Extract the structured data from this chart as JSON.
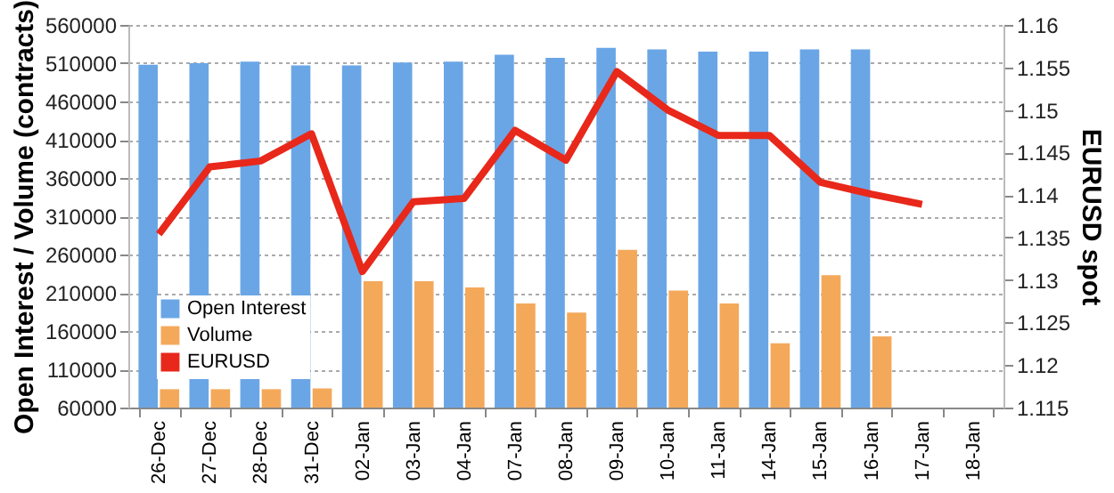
{
  "chart_data": {
    "type": "bar",
    "categories": [
      "26-Dec",
      "27-Dec",
      "28-Dec",
      "31-Dec",
      "02-Jan",
      "03-Jan",
      "04-Jan",
      "07-Jan",
      "08-Jan",
      "09-Jan",
      "10-Jan",
      "11-Jan",
      "14-Jan",
      "15-Jan",
      "16-Jan",
      "17-Jan",
      "18-Jan"
    ],
    "series": [
      {
        "name": "Open Interest",
        "color": "#6aa6e6",
        "values": [
          508000,
          510000,
          512000,
          507000,
          507000,
          511000,
          512000,
          521000,
          517000,
          530000,
          528000,
          525000,
          525000,
          528000,
          528000,
          null,
          null
        ]
      },
      {
        "name": "Volume",
        "color": "#f4a95a",
        "values": [
          84000,
          84000,
          84000,
          85000,
          225000,
          225000,
          217000,
          196000,
          184000,
          266000,
          213000,
          196000,
          144000,
          233000,
          153000,
          null,
          null
        ]
      },
      {
        "name": "EURUSD",
        "type": "line",
        "axis": "y2",
        "color": "#e8281a",
        "values": [
          1.1354,
          1.1433,
          1.144,
          1.1472,
          1.131,
          1.1392,
          1.1396,
          1.1476,
          1.1441,
          1.1545,
          1.15,
          1.147,
          1.147,
          1.1415,
          1.1401,
          1.1389,
          null
        ]
      }
    ],
    "ylabel": "Open Interest / Volume (contracts)",
    "y2label": "EURUSD spot",
    "ylim": [
      60000,
      560000
    ],
    "yticks": [
      60000,
      110000,
      160000,
      210000,
      260000,
      310000,
      360000,
      410000,
      460000,
      510000,
      560000
    ],
    "y2lim": [
      1.115,
      1.16
    ],
    "y2ticks": [
      1.115,
      1.12,
      1.125,
      1.13,
      1.135,
      1.14,
      1.145,
      1.15,
      1.155,
      1.16
    ],
    "grid": "y",
    "legend": "bottom left"
  }
}
